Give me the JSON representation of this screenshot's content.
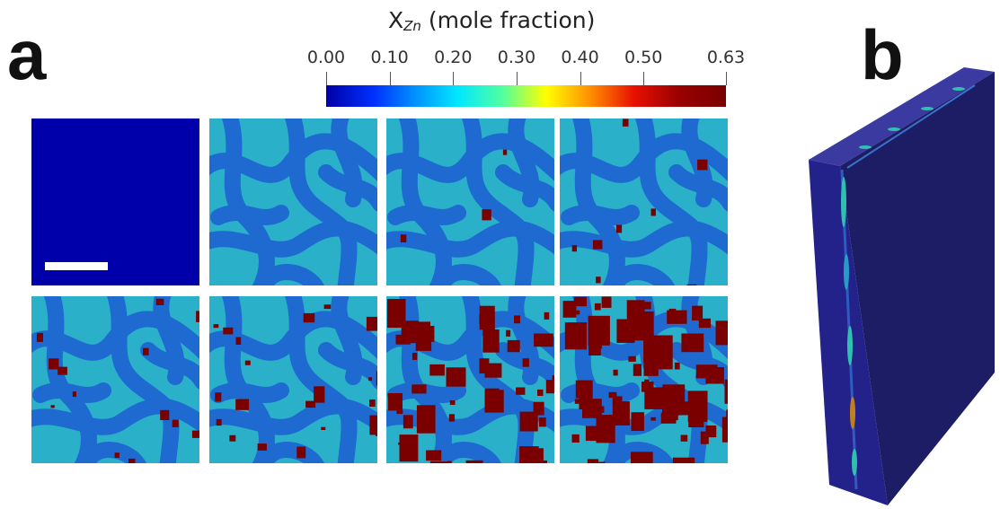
{
  "panel_labels": {
    "a": "a",
    "b": "b"
  },
  "colorbar": {
    "title_prefix": "X",
    "title_subscript": "Zn",
    "title_suffix": " (mole fraction)",
    "ticks": [
      "0.00",
      "0.10",
      "0.20",
      "0.30",
      "0.40",
      "0.50",
      "0.63"
    ],
    "colormap": [
      "#0000a8",
      "#0030ff",
      "#0090ff",
      "#00e8ff",
      "#50ffa0",
      "#ffff00",
      "#ff9000",
      "#e81000",
      "#9a0000",
      "#7a0000"
    ]
  },
  "colors": {
    "matrix": "#0000aa",
    "low_phase": "#1e6ad0",
    "mid_phase": "#2ab0c8",
    "high_phase": "#7a0000",
    "slab_face": "#2a2a8a",
    "slab_side": "#1d1d66"
  },
  "panels": [
    {
      "stage": 1,
      "precipitate_fraction": 0.0
    },
    {
      "stage": 2,
      "precipitate_fraction": 0.0
    },
    {
      "stage": 3,
      "precipitate_fraction": 0.02
    },
    {
      "stage": 4,
      "precipitate_fraction": 0.05
    },
    {
      "stage": 5,
      "precipitate_fraction": 0.08
    },
    {
      "stage": 6,
      "precipitate_fraction": 0.14
    },
    {
      "stage": 7,
      "precipitate_fraction": 0.3
    },
    {
      "stage": 8,
      "precipitate_fraction": 0.42
    }
  ]
}
